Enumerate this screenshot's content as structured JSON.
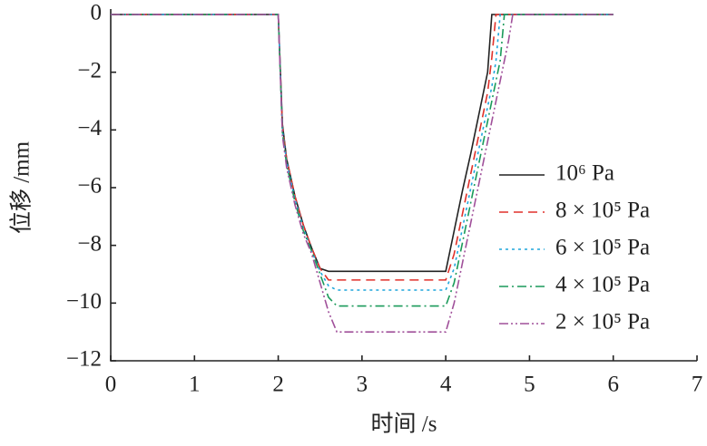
{
  "chart_data": {
    "type": "line",
    "xlabel": "时间 /s",
    "ylabel": "位移 /mm",
    "x": [
      0,
      2.0,
      2.05,
      2.1,
      2.2,
      2.3,
      2.4,
      2.5,
      2.6,
      2.7,
      4.0,
      4.1,
      4.2,
      4.3,
      4.4,
      4.5,
      4.55,
      4.6,
      4.65,
      4.7,
      4.75,
      4.8,
      6.0
    ],
    "series": [
      {
        "name": "10⁶ Pa",
        "color": "#222222",
        "dash": "solid",
        "values": [
          0,
          0,
          -3.8,
          -5.0,
          -6.3,
          -7.3,
          -8.1,
          -8.8,
          -8.9,
          -8.9,
          -8.9,
          -7.5,
          -6.1,
          -4.8,
          -3.4,
          -2.0,
          0,
          0,
          0,
          0,
          0,
          0,
          0
        ]
      },
      {
        "name": "8 × 10⁵ Pa",
        "color": "#e0312b",
        "dash": "dashed",
        "values": [
          0,
          0,
          -3.9,
          -5.0,
          -6.3,
          -7.3,
          -8.1,
          -8.8,
          -9.2,
          -9.2,
          -9.2,
          -8.3,
          -6.9,
          -5.5,
          -4.1,
          -2.7,
          -1.5,
          0,
          0,
          0,
          0,
          0,
          0
        ]
      },
      {
        "name": "6 × 10⁵ Pa",
        "color": "#1fa6dc",
        "dash": "dotted",
        "values": [
          0,
          0,
          -4.0,
          -5.1,
          -6.4,
          -7.4,
          -8.2,
          -8.9,
          -9.4,
          -9.55,
          -9.55,
          -8.8,
          -7.4,
          -6.0,
          -4.6,
          -3.2,
          -2.5,
          -1.6,
          0,
          0,
          0,
          0,
          0
        ]
      },
      {
        "name": "4 × 10⁵ Pa",
        "color": "#1a9a5a",
        "dash": "dashdot",
        "values": [
          0,
          0,
          -4.1,
          -5.2,
          -6.5,
          -7.5,
          -8.2,
          -9.0,
          -9.8,
          -10.1,
          -10.1,
          -9.3,
          -7.9,
          -6.5,
          -5.1,
          -3.7,
          -3.0,
          -2.3,
          -1.6,
          0,
          0,
          0,
          0
        ]
      },
      {
        "name": "2 × 10⁵ Pa",
        "color": "#a0509a",
        "dash": "dashdotdot",
        "values": [
          0,
          0,
          -4.2,
          -5.3,
          -6.6,
          -7.6,
          -8.3,
          -9.3,
          -10.3,
          -11.0,
          -11.0,
          -10.0,
          -8.6,
          -7.2,
          -5.8,
          -4.4,
          -3.7,
          -3.0,
          -2.3,
          -1.6,
          -0.9,
          0,
          0
        ]
      }
    ],
    "xlim": [
      0,
      7
    ],
    "xticks": [
      0,
      1,
      2,
      3,
      4,
      5,
      6,
      7
    ],
    "ylim": [
      -12,
      0
    ],
    "yticks": [
      {
        "value": -12,
        "label": "−12"
      },
      {
        "value": -10,
        "label": "−10"
      },
      {
        "value": -8,
        "label": "−8"
      },
      {
        "value": -6,
        "label": "−6"
      },
      {
        "value": -4,
        "label": "−4"
      },
      {
        "value": -2,
        "label": "−2"
      },
      0
    ],
    "legend": "right"
  }
}
